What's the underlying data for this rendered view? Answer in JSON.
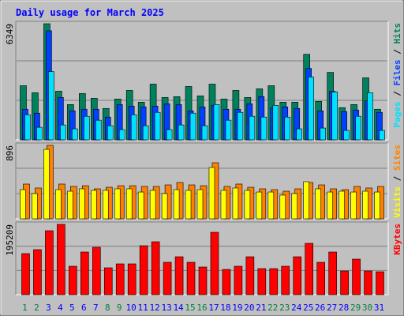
{
  "chart_data": [
    {
      "type": "bar",
      "title": "Daily usage for March 2025",
      "ylim": [
        0,
        6349
      ],
      "yticks": [
        6349
      ],
      "grid": true,
      "legend_separator": " / ",
      "series": [
        {
          "name": "Hits",
          "color": "#00805c",
          "values": [
            2960,
            2574,
            6349,
            2660,
            1931,
            2531,
            2274,
            1716,
            2231,
            2703,
            2059,
            3046,
            2317,
            2360,
            2917,
            2402,
            3046,
            2231,
            2703,
            2317,
            2789,
            2960,
            2059,
            2059,
            4676,
            2102,
            3689,
            1759,
            1931,
            3389,
            1673
          ]
        },
        {
          "name": "Files",
          "color": "#0040ff",
          "values": [
            1673,
            1459,
            5963,
            2317,
            1587,
            1673,
            1673,
            1244,
            1931,
            1845,
            1802,
            1845,
            1973,
            1931,
            1587,
            1802,
            1888,
            1673,
            1673,
            1973,
            2360,
            1759,
            1802,
            1716,
            3904,
            1587,
            2660,
            1544,
            1630,
            2145,
            1502
          ]
        },
        {
          "name": "Pages",
          "color": "#00e0ff",
          "values": [
            1373,
            686,
            3732,
            815,
            601,
            1287,
            1073,
            772,
            558,
            1373,
            772,
            1502,
            558,
            815,
            1459,
            772,
            1931,
            1073,
            1502,
            1287,
            1244,
            1888,
            1244,
            601,
            3432,
            644,
            2617,
            515,
            1287,
            2574,
            515
          ]
        }
      ]
    },
    {
      "type": "bar",
      "ylim": [
        0,
        896
      ],
      "yticks": [
        896
      ],
      "grid": true,
      "legend_separator": " / ",
      "series": [
        {
          "name": "Sites",
          "color": "#ff8000",
          "values": [
            424,
            376,
            896,
            424,
            395,
            404,
            366,
            385,
            404,
            404,
            395,
            395,
            414,
            443,
            414,
            404,
            684,
            395,
            424,
            385,
            366,
            356,
            337,
            366,
            443,
            414,
            366,
            356,
            395,
            376,
            395
          ]
        },
        {
          "name": "Visits",
          "color": "#ffff00",
          "values": [
            356,
            308,
            847,
            356,
            337,
            366,
            347,
            347,
            366,
            366,
            327,
            347,
            308,
            356,
            347,
            356,
            626,
            347,
            376,
            347,
            327,
            327,
            289,
            308,
            453,
            366,
            327,
            337,
            327,
            337,
            327
          ]
        }
      ]
    },
    {
      "type": "bar",
      "ylim": [
        0,
        195209
      ],
      "yticks": [
        195209
      ],
      "grid": true,
      "categories": [
        "1",
        "2",
        "3",
        "4",
        "5",
        "6",
        "7",
        "8",
        "9",
        "10",
        "11",
        "12",
        "13",
        "14",
        "15",
        "16",
        "17",
        "18",
        "19",
        "20",
        "21",
        "22",
        "23",
        "24",
        "25",
        "26",
        "27",
        "28",
        "29",
        "30",
        "31"
      ],
      "category_colors": [
        "#008040",
        "#008040",
        "#0000ff",
        "#0000ff",
        "#0000ff",
        "#0000ff",
        "#0000ff",
        "#008040",
        "#008040",
        "#0000ff",
        "#0000ff",
        "#0000ff",
        "#0000ff",
        "#0000ff",
        "#008040",
        "#008040",
        "#0000ff",
        "#0000ff",
        "#0000ff",
        "#0000ff",
        "#0000ff",
        "#008040",
        "#008040",
        "#0000ff",
        "#0000ff",
        "#0000ff",
        "#0000ff",
        "#0000ff",
        "#008040",
        "#008040",
        "#0000ff"
      ],
      "series": [
        {
          "name": "KBytes",
          "color": "#ff0000",
          "values": [
            114036,
            125001,
            177633,
            195209,
            78948,
            118422,
            131580,
            74562,
            85527,
            85527,
            135966,
            146931,
            89913,
            105264,
            89913,
            76755,
            173247,
            70176,
            78948,
            105264,
            72369,
            72369,
            78948,
            105264,
            142545,
            89913,
            118422,
            65790,
            98685,
            65790,
            63597
          ]
        }
      ]
    }
  ]
}
